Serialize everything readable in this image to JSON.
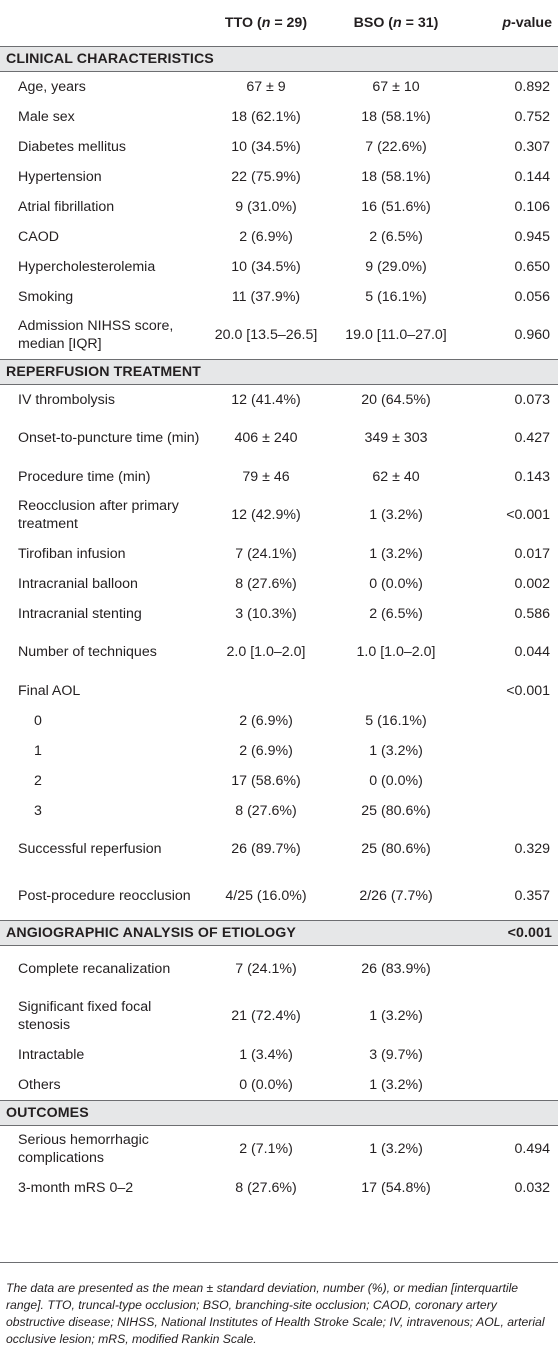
{
  "header": {
    "col1": "",
    "col2": "TTO (n = 29)",
    "col3": "BSO (n = 31)",
    "col4": "p-value"
  },
  "sections": [
    {
      "title": "CLINICAL CHARACTERISTICS",
      "p": "",
      "rows": [
        {
          "label": "Age, years",
          "tto": "67 ± 9",
          "bso": "67 ± 10",
          "p": "0.892"
        },
        {
          "label": "Male sex",
          "tto": "18 (62.1%)",
          "bso": "18 (58.1%)",
          "p": "0.752"
        },
        {
          "label": "Diabetes mellitus",
          "tto": "10 (34.5%)",
          "bso": "7 (22.6%)",
          "p": "0.307"
        },
        {
          "label": "Hypertension",
          "tto": "22 (75.9%)",
          "bso": "18 (58.1%)",
          "p": "0.144"
        },
        {
          "label": "Atrial fibrillation",
          "tto": "9 (31.0%)",
          "bso": "16 (51.6%)",
          "p": "0.106"
        },
        {
          "label": "CAOD",
          "tto": "2 (6.9%)",
          "bso": "2 (6.5%)",
          "p": "0.945"
        },
        {
          "label": " Hypercholesterolemia",
          "tto": "10 (34.5%)",
          "bso": "9 (29.0%)",
          "p": "0.650"
        },
        {
          "label": "Smoking",
          "tto": "11 (37.9%)",
          "bso": "5 (16.1%)",
          "p": "0.056"
        },
        {
          "label": "Admission NIHSS score, median [IQR]",
          "tto": "20.0 [13.5–26.5]",
          "bso": "19.0 [11.0–27.0]",
          "p": "0.960",
          "tall": true
        }
      ]
    },
    {
      "title": "REPERFUSION TREATMENT",
      "p": "",
      "rows": [
        {
          "label": "IV thrombolysis",
          "tto": "12 (41.4%)",
          "bso": "20 (64.5%)",
          "p": "0.073"
        },
        {
          "label": "Onset-to-puncture time (min)",
          "tto": "406 ± 240",
          "bso": "349 ± 303",
          "p": "0.427",
          "tall": true
        },
        {
          "label": "Procedure time (min)",
          "tto": "79 ± 46",
          "bso": "62 ± 40",
          "p": "0.143"
        },
        {
          "label": "Reocclusion after primary treatment",
          "tto": "12 (42.9%)",
          "bso": "1 (3.2%)",
          "p": "<0.001",
          "tall": true
        },
        {
          "label": "Tirofiban infusion",
          "tto": "7 (24.1%)",
          "bso": "1 (3.2%)",
          "p": "0.017"
        },
        {
          "label": "Intracranial balloon",
          "tto": "8 (27.6%)",
          "bso": "0 (0.0%)",
          "p": "0.002"
        },
        {
          "label": "Intracranial stenting",
          "tto": "3 (10.3%)",
          "bso": "2 (6.5%)",
          "p": "0.586"
        },
        {
          "label": "Number of techniques",
          "tto": "2.0 [1.0–2.0]",
          "bso": "1.0 [1.0–2.0]",
          "p": "0.044",
          "tall": true
        },
        {
          "label": "Final AOL",
          "tto": "",
          "bso": "",
          "p": "<0.001"
        },
        {
          "label": "0",
          "tto": "2 (6.9%)",
          "bso": "5 (16.1%)",
          "p": "",
          "sub": true
        },
        {
          "label": "1",
          "tto": "2 (6.9%)",
          "bso": "1 (3.2%)",
          "p": "",
          "sub": true
        },
        {
          "label": "2",
          "tto": "17 (58.6%)",
          "bso": "0 (0.0%)",
          "p": "",
          "sub": true
        },
        {
          "label": "3",
          "tto": "8 (27.6%)",
          "bso": "25 (80.6%)",
          "p": "",
          "sub": true
        },
        {
          "label": "Successful reperfusion",
          "tto": "26 (89.7%)",
          "bso": "25 (80.6%)",
          "p": "0.329",
          "tall": true
        },
        {
          "label": "Post-procedure reocclusion",
          "tto": "4/25 (16.0%)",
          "bso": "2/26 (7.7%)",
          "p": "0.357",
          "tall": true
        }
      ]
    },
    {
      "title": "ANGIOGRAPHIC ANALYSIS OF ETIOLOGY",
      "p": "<0.001",
      "rows": [
        {
          "label": "Complete recanalization",
          "tto": "7 (24.1%)",
          "bso": "26 (83.9%)",
          "p": "",
          "tall": true
        },
        {
          "label": "Significant fixed focal stenosis",
          "tto": "21 (72.4%)",
          "bso": "1 (3.2%)",
          "p": "",
          "tall": true
        },
        {
          "label": "Intractable",
          "tto": "1 (3.4%)",
          "bso": "3 (9.7%)",
          "p": ""
        },
        {
          "label": "Others",
          "tto": "0 (0.0%)",
          "bso": "1 (3.2%)",
          "p": ""
        }
      ]
    },
    {
      "title": "OUTCOMES",
      "p": "",
      "rows": [
        {
          "label": "Serious hemorrhagic complications",
          "tto": "2 (7.1%)",
          "bso": "1 (3.2%)",
          "p": "0.494",
          "tall": true
        },
        {
          "label": "3-month mRS 0–2",
          "tto": "8 (27.6%)",
          "bso": "17 (54.8%)",
          "p": "0.032"
        }
      ]
    }
  ],
  "footnote": "The data are presented as the mean ± standard deviation, number (%), or median [interquartile range]. TTO, truncal-type occlusion; BSO, branching-site occlusion; CAOD, coronary artery obstructive disease; NIHSS, National Institutes of Health Stroke Scale; IV, intravenous; AOL, arterial occlusive lesion; mRS, modified Rankin Scale."
}
